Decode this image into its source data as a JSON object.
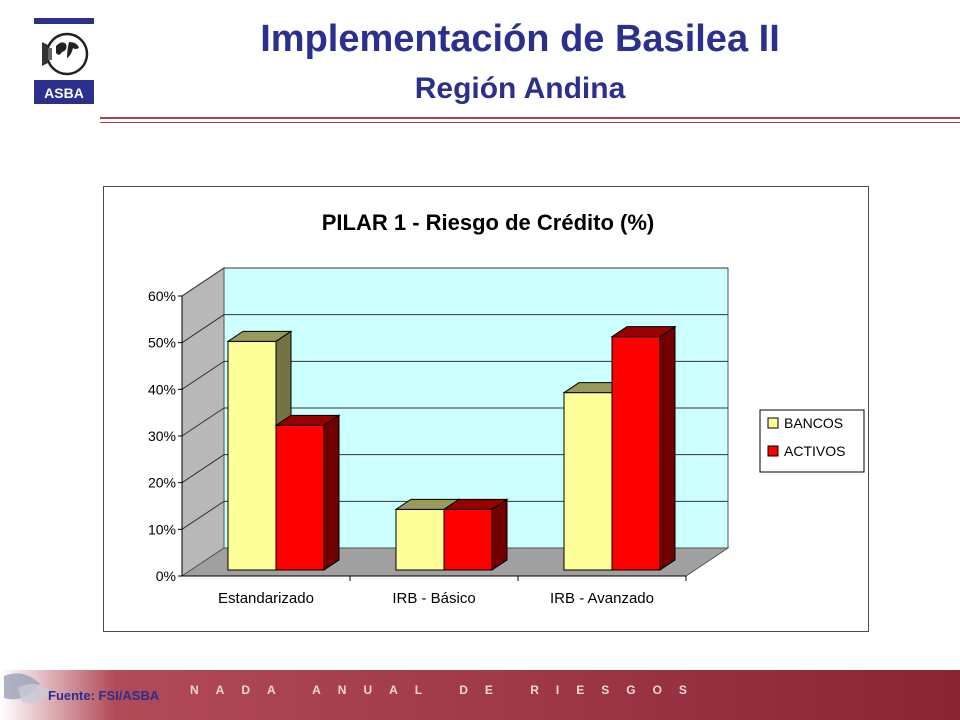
{
  "header": {
    "logo_text": "ASBA",
    "title": "Implementación de Basilea II",
    "subtitle": "Región Andina"
  },
  "colors": {
    "title": "#2b2f8e",
    "plot_bg": "#ccffff",
    "bancos": "#ffff99",
    "activos": "#ff0000",
    "rule": "#b04050"
  },
  "chart_data": {
    "type": "bar",
    "title": "PILAR 1 - Riesgo de Crédito (%)",
    "categories": [
      "Estandarizado",
      "IRB - Básico",
      "IRB - Avanzado"
    ],
    "series": [
      {
        "name": "BANCOS",
        "values": [
          49,
          13,
          38
        ]
      },
      {
        "name": "ACTIVOS",
        "values": [
          31,
          13,
          50
        ]
      }
    ],
    "ylim": [
      0,
      60
    ],
    "yticks": [
      "0%",
      "10%",
      "20%",
      "30%",
      "40%",
      "50%",
      "60%"
    ],
    "grid": true,
    "legend": "right",
    "style": "3d-columns"
  },
  "footer": {
    "source": "Fuente: FSI/ASBA",
    "banner": "NADA ANUAL DE RIESGOS"
  }
}
